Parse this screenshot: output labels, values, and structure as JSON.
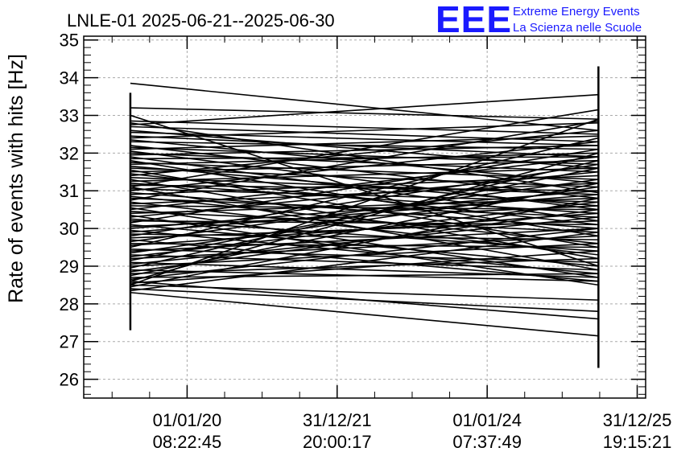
{
  "colors": {
    "data_line": "#000000",
    "grid": "#aaaaaa",
    "logo": "#1a1aff"
  },
  "logo": {
    "mark": "EEE",
    "line1": "Extreme Energy Events",
    "line2": "La Scienza nelle Scuole"
  },
  "chart_data": {
    "type": "line",
    "title": "LNLE-01 2025-06-21--2025-06-30",
    "xlabel": "",
    "ylabel": "Rate of events with hits [Hz]",
    "ylim": [
      25.5,
      35.1
    ],
    "xlim": [
      0,
      1
    ],
    "grid": true,
    "y_ticks": [
      26,
      27,
      28,
      29,
      30,
      31,
      32,
      33,
      34,
      35
    ],
    "x_ticks": [
      {
        "pos": 0.184,
        "date": "01/01/20",
        "time": "08:22:45"
      },
      {
        "pos": 0.451,
        "date": "31/12/21",
        "time": "20:00:17"
      },
      {
        "pos": 0.718,
        "date": "01/01/24",
        "time": "07:37:49"
      },
      {
        "pos": 0.985,
        "date": "31/12/25",
        "time": "19:15:21"
      }
    ],
    "series": [
      {
        "x_start": 0.083,
        "x_end": 0.916,
        "segments": [
          [
            33.85,
            32.6
          ],
          [
            33.2,
            32.9
          ],
          [
            32.85,
            32.5
          ],
          [
            32.75,
            33.55
          ],
          [
            32.7,
            32.3
          ],
          [
            32.6,
            31.6
          ],
          [
            32.55,
            32.2
          ],
          [
            32.45,
            31.9
          ],
          [
            32.4,
            32.8
          ],
          [
            32.35,
            31.2
          ],
          [
            32.3,
            32.1
          ],
          [
            32.2,
            30.8
          ],
          [
            32.15,
            31.7
          ],
          [
            32.1,
            32.45
          ],
          [
            32.05,
            30.5
          ],
          [
            32.0,
            31.5
          ],
          [
            31.95,
            32.2
          ],
          [
            31.9,
            30.2
          ],
          [
            31.85,
            31.9
          ],
          [
            31.8,
            29.8
          ],
          [
            31.75,
            31.3
          ],
          [
            31.7,
            32.0
          ],
          [
            31.65,
            30.6
          ],
          [
            31.6,
            31.1
          ],
          [
            31.55,
            29.5
          ],
          [
            31.5,
            31.8
          ],
          [
            31.45,
            30.1
          ],
          [
            31.4,
            32.6
          ],
          [
            31.35,
            30.9
          ],
          [
            31.3,
            29.2
          ],
          [
            31.25,
            31.6
          ],
          [
            31.2,
            30.4
          ],
          [
            31.15,
            31.0
          ],
          [
            31.1,
            28.9
          ],
          [
            31.05,
            30.7
          ],
          [
            31.0,
            32.3
          ],
          [
            30.95,
            30.0
          ],
          [
            30.9,
            31.4
          ],
          [
            30.85,
            29.6
          ],
          [
            30.8,
            30.3
          ],
          [
            30.75,
            32.85
          ],
          [
            30.7,
            29.3
          ],
          [
            30.65,
            31.2
          ],
          [
            30.6,
            30.5
          ],
          [
            30.55,
            28.7
          ],
          [
            30.5,
            31.9
          ],
          [
            30.45,
            29.9
          ],
          [
            30.4,
            30.8
          ],
          [
            30.35,
            28.5
          ],
          [
            30.3,
            31.5
          ],
          [
            30.25,
            29.4
          ],
          [
            30.2,
            30.1
          ],
          [
            30.15,
            32.1
          ],
          [
            30.1,
            29.0
          ],
          [
            30.05,
            30.6
          ],
          [
            30.0,
            31.0
          ],
          [
            29.95,
            28.8
          ],
          [
            29.9,
            30.9
          ],
          [
            29.85,
            29.7
          ],
          [
            29.8,
            31.7
          ],
          [
            29.75,
            30.2
          ],
          [
            29.7,
            28.6
          ],
          [
            29.65,
            31.3
          ],
          [
            29.6,
            29.5
          ],
          [
            29.55,
            30.4
          ],
          [
            29.5,
            32.4
          ],
          [
            29.45,
            29.1
          ],
          [
            29.4,
            30.0
          ],
          [
            29.35,
            31.1
          ],
          [
            29.3,
            28.9
          ],
          [
            29.25,
            30.7
          ],
          [
            29.2,
            29.8
          ],
          [
            29.15,
            31.6
          ],
          [
            29.1,
            28.7
          ],
          [
            29.05,
            30.3
          ],
          [
            29.0,
            29.6
          ],
          [
            28.95,
            31.8
          ],
          [
            28.9,
            28.6
          ],
          [
            28.85,
            30.5
          ],
          [
            28.8,
            29.2
          ],
          [
            28.75,
            31.2
          ],
          [
            28.7,
            28.8
          ],
          [
            28.65,
            30.0
          ],
          [
            28.6,
            32.0
          ],
          [
            28.55,
            29.4
          ],
          [
            28.5,
            28.1
          ],
          [
            28.45,
            30.8
          ],
          [
            28.4,
            27.8
          ],
          [
            28.35,
            29.9
          ],
          [
            28.3,
            27.15
          ],
          [
            28.5,
            32.9
          ],
          [
            28.6,
            27.6
          ],
          [
            33.0,
            29.0
          ],
          [
            32.8,
            30.95
          ],
          [
            31.1,
            33.15
          ]
        ]
      }
    ],
    "error_bars": {
      "start": [
        27.3,
        33.6
      ],
      "end": [
        26.3,
        34.3
      ]
    }
  }
}
